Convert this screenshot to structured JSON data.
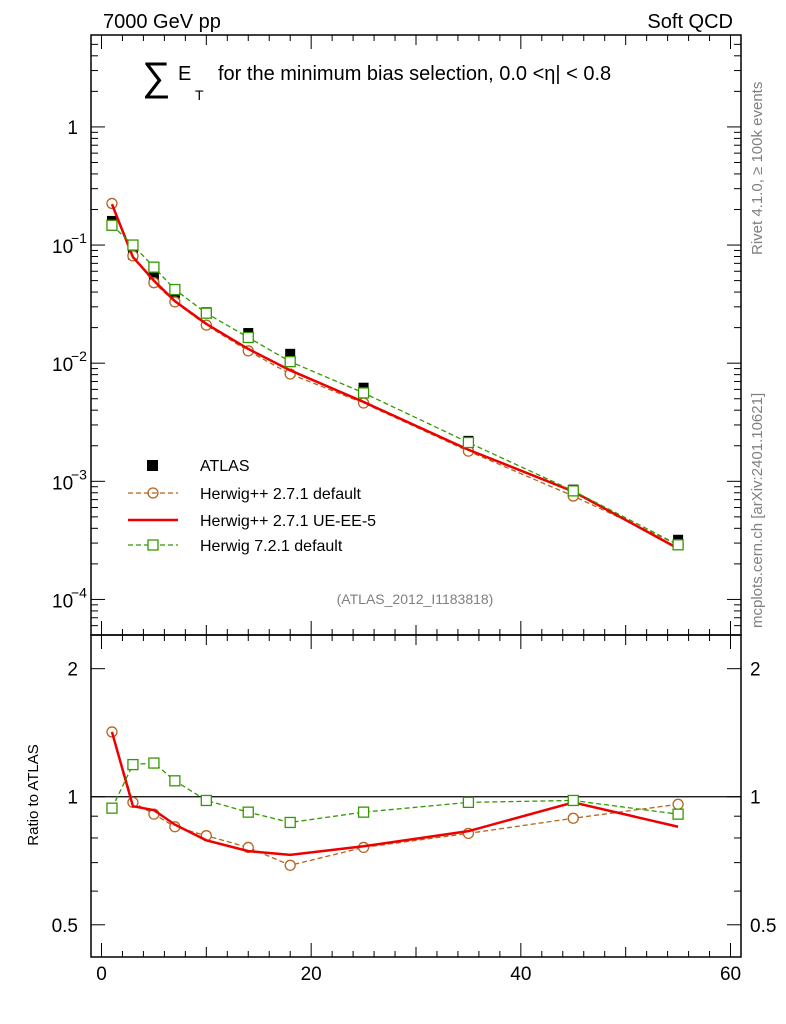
{
  "header": {
    "left": "7000 GeV pp",
    "right": "Soft QCD"
  },
  "side_text": {
    "rivet": "Rivet 4.1.0, ≥ 100k events",
    "mcplots": "mcplots.cern.ch [arXiv:2401.10621]"
  },
  "title": {
    "sum_symbol": "∑",
    "e": "E",
    "sub": "T",
    "rest": "for the minimum bias selection, 0.0 <η| < 0.8"
  },
  "analysis_id": "(ATLAS_2012_I1183818)",
  "legend": [
    {
      "label": "ATLAS",
      "style": "marker-square"
    },
    {
      "label": "Herwig++ 2.7.1 default",
      "style": "dashed-circle"
    },
    {
      "label": "Herwig++ 2.7.1 UE-EE-5",
      "style": "solid"
    },
    {
      "label": "Herwig 7.2.1 default",
      "style": "dashed-square"
    }
  ],
  "chart_data": [
    {
      "type": "scatter",
      "panel": "main",
      "yscale": "log",
      "xlim": [
        -1,
        61
      ],
      "ylim": [
        5e-05,
        6
      ],
      "ytick_labels": [
        {
          "base": "10",
          "exp": "−4"
        },
        {
          "base": "10",
          "exp": "−3"
        },
        {
          "base": "10",
          "exp": "−2"
        },
        {
          "base": "10",
          "exp": "−1"
        },
        {
          "base": "1",
          "exp": ""
        }
      ],
      "ytick_values": [
        0.0001,
        0.001,
        0.01,
        0.1,
        1
      ],
      "x": [
        1,
        3,
        5,
        7,
        10,
        14,
        18,
        25,
        35,
        45,
        55
      ],
      "series": [
        {
          "name": "ATLAS",
          "color": "#000000",
          "marker": "filled-square",
          "line": "none",
          "values": [
            0.16,
            0.083,
            0.054,
            0.039,
            0.027,
            0.018,
            0.012,
            0.0062,
            0.0022,
            0.00085,
            0.00032
          ]
        },
        {
          "name": "Herwig++ 2.7.1 default",
          "color": "#b5651d",
          "marker": "open-circle",
          "line": "dashed",
          "values": [
            0.225,
            0.081,
            0.048,
            0.033,
            0.021,
            0.0127,
            0.0081,
            0.0046,
            0.0018,
            0.00075,
            0.00029
          ]
        },
        {
          "name": "Herwig++ 2.7.1 UE-EE-5",
          "color": "#ee0000",
          "marker": "none",
          "line": "solid",
          "values": [
            0.222,
            0.079,
            0.05,
            0.0335,
            0.0215,
            0.0132,
            0.0087,
            0.0047,
            0.00185,
            0.00082,
            0.00027
          ]
        },
        {
          "name": "Herwig 7.2.1 default",
          "color": "#339900",
          "marker": "open-square",
          "line": "dashed",
          "values": [
            0.147,
            0.1,
            0.065,
            0.042,
            0.0265,
            0.0165,
            0.0103,
            0.0056,
            0.00213,
            0.00083,
            0.00029
          ]
        }
      ]
    },
    {
      "type": "line",
      "panel": "ratio",
      "ylabel": "Ratio to ATLAS",
      "yscale": "log",
      "xlim": [
        -1,
        61
      ],
      "ylim": [
        0.42,
        2.4
      ],
      "ytick_labels": [
        "0.5",
        "1",
        "2"
      ],
      "ytick_values": [
        0.5,
        1,
        2
      ],
      "xtick_labels": [
        "0",
        "20",
        "40",
        "60"
      ],
      "xtick_values": [
        0,
        20,
        40,
        60
      ],
      "x": [
        1,
        3,
        5,
        7,
        10,
        14,
        18,
        25,
        35,
        45,
        55
      ],
      "reference": 1,
      "series": [
        {
          "name": "Herwig++ 2.7.1 default",
          "color": "#b5651d",
          "marker": "open-circle",
          "line": "dashed",
          "values": [
            1.42,
            0.97,
            0.91,
            0.85,
            0.81,
            0.76,
            0.69,
            0.76,
            0.82,
            0.89,
            0.96
          ]
        },
        {
          "name": "Herwig++ 2.7.1 UE-EE-5",
          "color": "#ee0000",
          "marker": "none",
          "line": "solid",
          "values": [
            1.42,
            0.95,
            0.93,
            0.86,
            0.79,
            0.745,
            0.73,
            0.765,
            0.83,
            0.97,
            0.85
          ]
        },
        {
          "name": "Herwig 7.2.1 default",
          "color": "#339900",
          "marker": "open-square",
          "line": "dashed",
          "values": [
            0.94,
            1.19,
            1.2,
            1.09,
            0.98,
            0.92,
            0.87,
            0.92,
            0.97,
            0.98,
            0.91
          ]
        }
      ]
    }
  ]
}
